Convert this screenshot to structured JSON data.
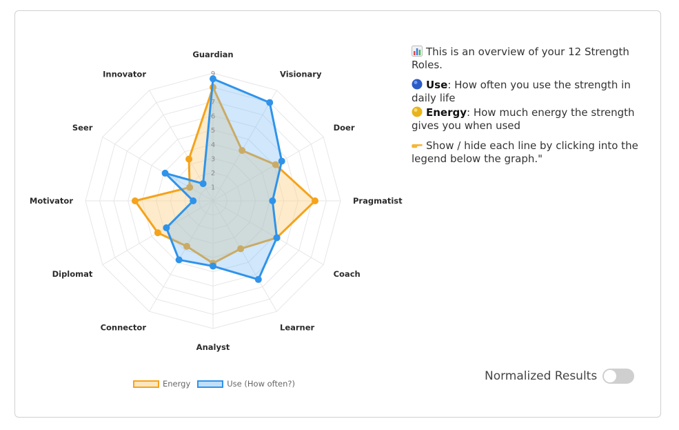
{
  "chart_data": {
    "type": "radar",
    "axes": [
      "Guardian",
      "Visionary",
      "Doer",
      "Pragmatist",
      "Coach",
      "Learner",
      "Analyst",
      "Connector",
      "Diplomat",
      "Motivator",
      "Seer",
      "Innovator"
    ],
    "r_ticks": [
      "1",
      "2",
      "3",
      "4",
      "5",
      "6",
      "7",
      "9"
    ],
    "r_max": 9,
    "grid": true,
    "legend_position": "bottom",
    "series": [
      {
        "name": "Energy",
        "values": [
          8,
          4.1,
          5.1,
          7.2,
          5.2,
          3.9,
          4.4,
          3.7,
          4.5,
          5.5,
          1.9,
          3.4
        ],
        "color": "#f5a31a",
        "fill": "rgba(250,210,140,0.45)"
      },
      {
        "name": "Use (How often?)",
        "values": [
          8.6,
          8,
          5.6,
          4.2,
          5.2,
          6.4,
          4.6,
          4.8,
          3.8,
          1.4,
          3.9,
          1.4
        ],
        "color": "#2f93ea",
        "fill": "rgba(120,185,245,0.35)"
      }
    ]
  },
  "info": {
    "overview": "This is an overview of your 12 Strength Roles.",
    "use_title": "Use",
    "use_text": ": How often you use the strength in daily life",
    "energy_title": "Energy",
    "energy_text": ": How much energy the strength gives you when used",
    "hint": "Show / hide each line by clicking into the legend below the graph.\""
  },
  "toggle": {
    "label": "Normalized Results",
    "on": false
  }
}
